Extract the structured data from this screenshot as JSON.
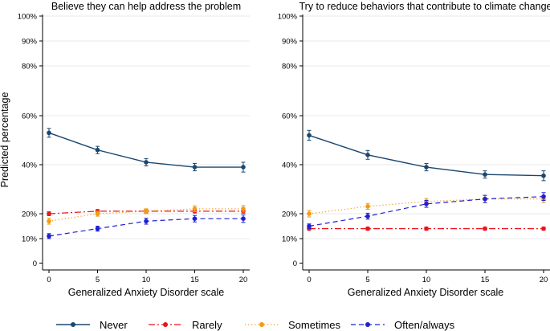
{
  "chart_data": {
    "type": "line",
    "ylabel": "Predicted percentage",
    "x_ticks": [
      0,
      5,
      10,
      15,
      20
    ],
    "y_ticks": [
      0,
      10,
      20,
      40,
      60,
      80,
      90,
      100
    ],
    "y_tick_labels": [
      "0",
      "10%",
      "20%",
      "40%",
      "60%",
      "80%",
      "90%",
      "100%"
    ],
    "xlim": [
      0,
      20
    ],
    "ylim": [
      0,
      100
    ],
    "legend_position": "bottom",
    "panels": [
      {
        "title": "Believe they can help address the problem",
        "xlabel": "Generalized Anxiety Disorder scale",
        "x": [
          0,
          5,
          10,
          15,
          20
        ],
        "series": [
          {
            "name": "Never",
            "values": [
              53,
              46,
              41,
              39,
              39
            ],
            "err": [
              1.8,
              1.5,
              1.5,
              1.5,
              2.0
            ]
          },
          {
            "name": "Rarely",
            "values": [
              20,
              21,
              21,
              21,
              21
            ],
            "err": [
              0.8,
              0.7,
              0.7,
              0.7,
              0.8
            ]
          },
          {
            "name": "Sometimes",
            "values": [
              17,
              20,
              21,
              22,
              22
            ],
            "err": [
              1.2,
              1.0,
              1.0,
              1.2,
              1.3
            ]
          },
          {
            "name": "Often/always",
            "values": [
              11,
              14,
              17,
              18,
              18
            ],
            "err": [
              1.0,
              1.0,
              1.2,
              1.3,
              1.5
            ]
          }
        ]
      },
      {
        "title": "Try to reduce behaviors that contribute to climate change",
        "xlabel": "Generalized Anxiety Disorder scale",
        "x": [
          0,
          5,
          10,
          15,
          20
        ],
        "series": [
          {
            "name": "Never",
            "values": [
              52,
              44,
              39,
              36,
              35.5
            ],
            "err": [
              2.0,
              1.8,
              1.5,
              1.5,
              2.0
            ]
          },
          {
            "name": "Rarely",
            "values": [
              14,
              14,
              14,
              14,
              14
            ],
            "err": [
              0.6,
              0.6,
              0.6,
              0.6,
              0.6
            ]
          },
          {
            "name": "Sometimes",
            "values": [
              20,
              23,
              25,
              26,
              26
            ],
            "err": [
              1.3,
              1.2,
              1.2,
              1.5,
              1.5
            ]
          },
          {
            "name": "Often/always",
            "values": [
              15,
              19,
              24,
              26,
              27
            ],
            "err": [
              0.9,
              1.2,
              1.4,
              1.5,
              1.6
            ]
          }
        ]
      }
    ],
    "series_styles": [
      {
        "name": "Never",
        "color": "#1a476f",
        "dash": ""
      },
      {
        "name": "Rarely",
        "color": "#e8151b",
        "dash": "8 3 2 3"
      },
      {
        "name": "Sometimes",
        "color": "#f39c12",
        "dash": "1.2 2.8"
      },
      {
        "name": "Often/always",
        "color": "#1f1fd6",
        "dash": "6 4"
      }
    ]
  },
  "legend": {
    "items": [
      {
        "label": "Never"
      },
      {
        "label": "Rarely"
      },
      {
        "label": "Sometimes"
      },
      {
        "label": "Often/always"
      }
    ]
  }
}
